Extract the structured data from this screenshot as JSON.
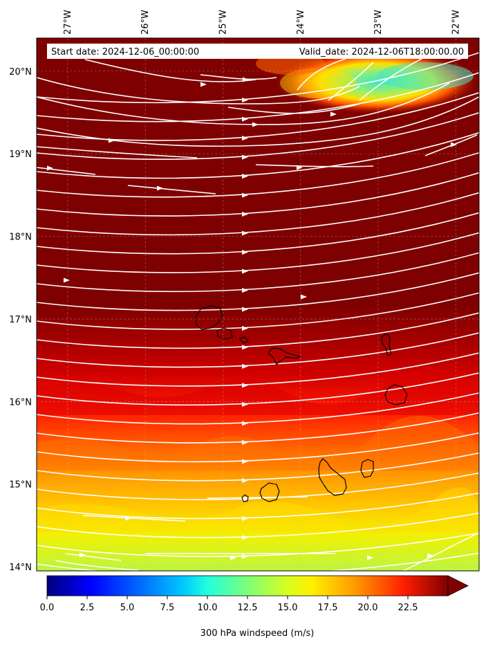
{
  "header": {
    "start_label": "Start date: 2024-12-06_00:00:00",
    "valid_label": "Valid_date: 2024-12-06T18:00:00.00"
  },
  "map": {
    "projection": "lat-lon",
    "lon_range": [
      -27.4,
      -21.7
    ],
    "lat_range": [
      13.95,
      20.4
    ],
    "lon_ticks": [
      -27,
      -26,
      -25,
      -24,
      -23,
      -22
    ],
    "lon_tick_labels": [
      "27°W",
      "26°W",
      "25°W",
      "24°W",
      "23°W",
      "22°W"
    ],
    "lat_ticks": [
      14,
      15,
      16,
      17,
      18,
      19,
      20
    ],
    "lat_tick_labels": [
      "14°N",
      "15°N",
      "16°N",
      "17°N",
      "18°N",
      "19°N",
      "20°N"
    ],
    "gridlines": true,
    "field": "300 hPa windspeed",
    "overlay": "streamlines (white)",
    "coastlines": "Cape Verde islands (black outlines)"
  },
  "colorbar": {
    "colormap": "jet",
    "min": 0,
    "max": 25,
    "extend": "max",
    "ticks": [
      0.0,
      2.5,
      5.0,
      7.5,
      10.0,
      12.5,
      15.0,
      17.5,
      20.0,
      22.5
    ],
    "tick_labels": [
      "0.0",
      "2.5",
      "5.0",
      "7.5",
      "10.0",
      "12.5",
      "15.0",
      "17.5",
      "20.0",
      "22.5"
    ],
    "label": "300 hPa windspeed (m/s)"
  },
  "colors": {
    "background_field": "#7f0000",
    "streamline": "#ffffff",
    "coastline": "#000000"
  }
}
